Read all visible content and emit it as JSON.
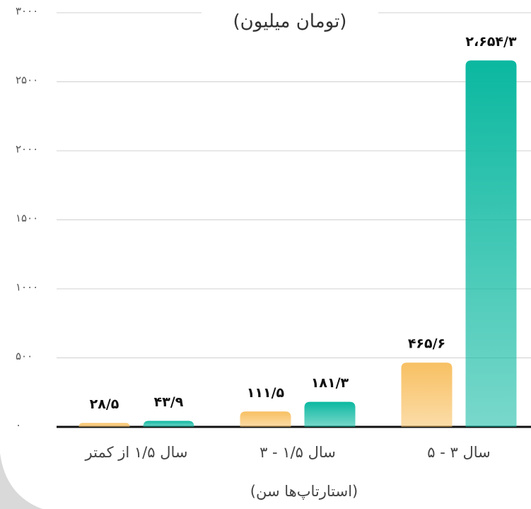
{
  "chart_data": {
    "type": "bar",
    "title": "(تومان میلیون)",
    "x_label": "(استارتاپ‌ها سن)",
    "categories": [
      "سال ۱/۵ از کمتر",
      "سال ۱/۵ - ۳",
      "سال ۳ - ۵"
    ],
    "series": [
      {
        "color": "#f8c062",
        "values": [
          28.5,
          111.5,
          465.6
        ],
        "value_labels": [
          "۲۸/۵",
          "۱۱۱/۵",
          "۴۶۵/۶"
        ]
      },
      {
        "color": "#0bb8a0",
        "values": [
          43.9,
          181.3,
          2654.3
        ],
        "value_labels": [
          "۴۳/۹",
          "۱۸۱/۳",
          "۲،۶۵۴/۳"
        ]
      }
    ],
    "ylim": [
      0,
      3000
    ],
    "yticks": [
      {
        "value": 0,
        "label": "۰"
      },
      {
        "value": 500,
        "label": "۵۰۰"
      },
      {
        "value": 1000,
        "label": "۱۰۰۰"
      },
      {
        "value": 1500,
        "label": "۱۵۰۰"
      },
      {
        "value": 2000,
        "label": "۲۰۰۰"
      },
      {
        "value": 2500,
        "label": "۲۵۰۰"
      },
      {
        "value": 3000,
        "label": "۳۰۰۰"
      }
    ],
    "grid": true
  }
}
